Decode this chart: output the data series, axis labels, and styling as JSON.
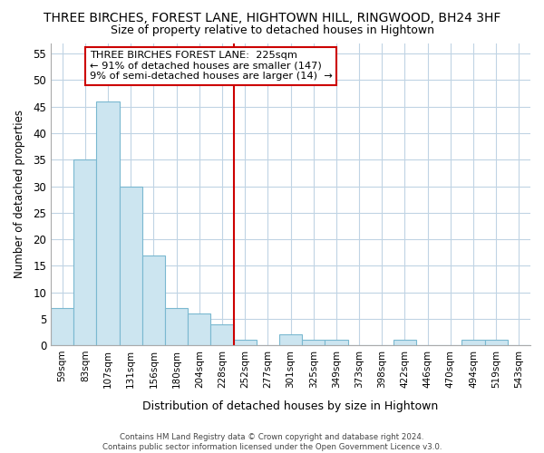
{
  "title": "THREE BIRCHES, FOREST LANE, HIGHTOWN HILL, RINGWOOD, BH24 3HF",
  "subtitle": "Size of property relative to detached houses in Hightown",
  "xlabel": "Distribution of detached houses by size in Hightown",
  "ylabel": "Number of detached properties",
  "bar_labels": [
    "59sqm",
    "83sqm",
    "107sqm",
    "131sqm",
    "156sqm",
    "180sqm",
    "204sqm",
    "228sqm",
    "252sqm",
    "277sqm",
    "301sqm",
    "325sqm",
    "349sqm",
    "373sqm",
    "398sqm",
    "422sqm",
    "446sqm",
    "470sqm",
    "494sqm",
    "519sqm",
    "543sqm"
  ],
  "bar_values": [
    7,
    35,
    46,
    30,
    17,
    7,
    6,
    4,
    1,
    0,
    2,
    1,
    1,
    0,
    0,
    1,
    0,
    0,
    1,
    1,
    0
  ],
  "bar_color": "#cce5f0",
  "bar_edge_color": "#7ab8d0",
  "vline_color": "#cc0000",
  "ylim": [
    0,
    57
  ],
  "yticks": [
    0,
    5,
    10,
    15,
    20,
    25,
    30,
    35,
    40,
    45,
    50,
    55
  ],
  "annotation_title": "THREE BIRCHES FOREST LANE:  225sqm",
  "annotation_line1": "← 91% of detached houses are smaller (147)",
  "annotation_line2": "9% of semi-detached houses are larger (14)  →",
  "footer_line1": "Contains HM Land Registry data © Crown copyright and database right 2024.",
  "footer_line2": "Contains public sector information licensed under the Open Government Licence v3.0.",
  "bg_color": "#ffffff",
  "grid_color": "#c0d4e4"
}
